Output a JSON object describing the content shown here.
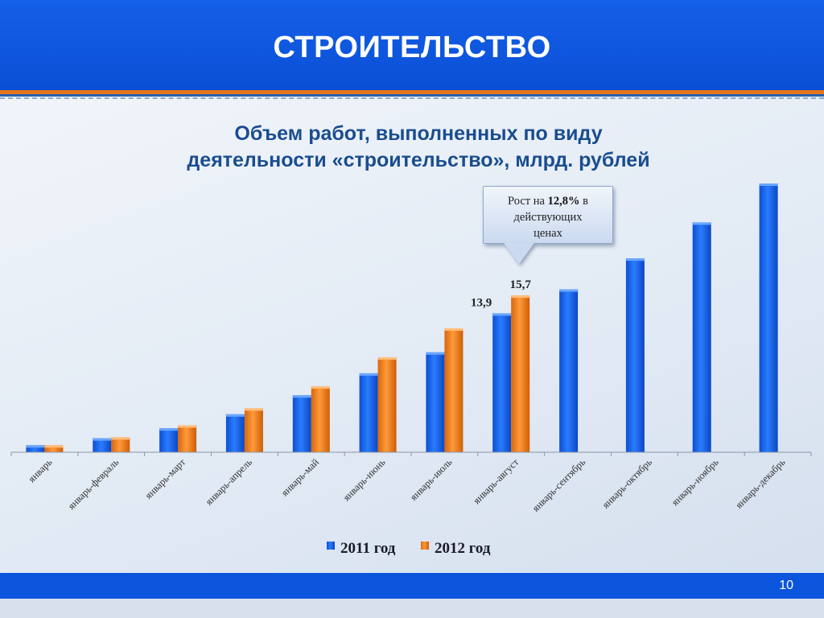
{
  "slide": {
    "title": "СТРОИТЕЛЬСТВО",
    "page_number": "10"
  },
  "callout": {
    "prefix": "Рост на ",
    "value": "12,8%",
    "suffix_1": " в",
    "line_2": "действующих",
    "line_3": "ценах"
  },
  "colors": {
    "header_blue": "#0a4fd6",
    "series_2011": "#1a66f0",
    "series_2012": "#f07f1a",
    "title_text": "#1a4d8f"
  },
  "chart_data": {
    "type": "bar",
    "title": "Объем работ, выполненных по виду деятельности «строительство», млрд. рублей",
    "title_lines": [
      "Объем работ, выполненных по виду",
      "деятельности «строительство», млрд. рублей"
    ],
    "categories": [
      "январь",
      "январь-февраль",
      "январь-март",
      "январь-апрель",
      "январь-май",
      "январь-июнь",
      "январь-июль",
      "январь-август",
      "январь-сентябрь",
      "январь-октябрь",
      "январь-ноябрь",
      "январь-декабрь"
    ],
    "series": [
      {
        "name": "2011 год",
        "color": "#1a66f0",
        "values": [
          0.7,
          1.4,
          2.4,
          3.8,
          5.7,
          7.9,
          10.0,
          13.9,
          16.3,
          19.4,
          23.0,
          26.9
        ]
      },
      {
        "name": "2012 год",
        "color": "#f07f1a",
        "values": [
          0.7,
          1.5,
          2.7,
          4.4,
          6.6,
          9.5,
          12.4,
          15.7,
          null,
          null,
          null,
          null
        ]
      }
    ],
    "data_labels": [
      {
        "series": "2011 год",
        "category": "январь-август",
        "text": "13,9"
      },
      {
        "series": "2012 год",
        "category": "январь-август",
        "text": "15,7"
      }
    ],
    "ylim": [
      0,
      28
    ],
    "xlabel": "",
    "ylabel": "",
    "grid": false,
    "legend": "bottom"
  }
}
